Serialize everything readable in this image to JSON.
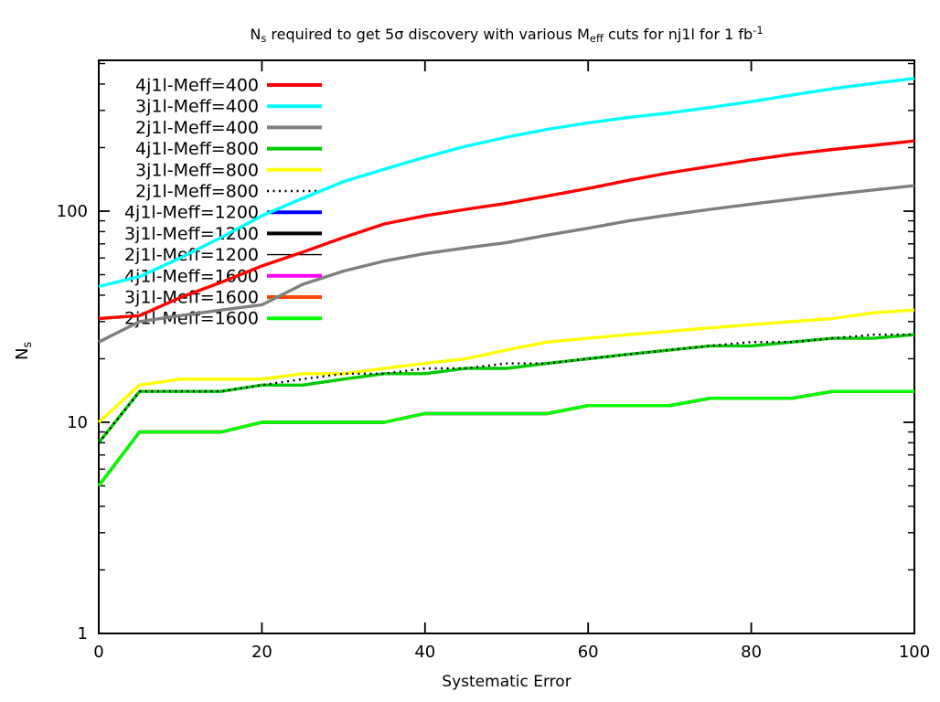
{
  "page": {
    "background": "#ffffff"
  },
  "title": {
    "p1": "N",
    "p1_sub": "s",
    "p2": " required to get 5σ discovery with various M",
    "p2_sub": "eff",
    "p3": " cuts for nj1l for 1 fb",
    "p3_sup": "-1"
  },
  "axes": {
    "x_label": "Systematic Error",
    "y_label_main": "N",
    "y_label_sub": "s"
  },
  "chart_data": {
    "type": "line",
    "title": "Ns required to get 5σ discovery with various Meff cuts for nj1l for 1 fb-1",
    "xlabel": "Systematic Error",
    "ylabel": "Ns",
    "x_scale": "linear",
    "y_scale": "log",
    "xlim": [
      0,
      100
    ],
    "ylim": [
      1,
      518
    ],
    "grid": false,
    "legend_position": "top-left-inside",
    "x_ticks": [
      0,
      20,
      40,
      60,
      80,
      100
    ],
    "x_tick_labels": [
      "0",
      "20",
      "40",
      "60",
      "80",
      "100"
    ],
    "y_ticks": [
      1,
      10,
      100
    ],
    "y_tick_labels": [
      "1",
      "10",
      "100"
    ],
    "y_minor_ticks": [
      2,
      3,
      4,
      5,
      6,
      7,
      8,
      9,
      20,
      30,
      40,
      50,
      60,
      70,
      80,
      90,
      200,
      300,
      400,
      500
    ],
    "x": [
      0,
      5,
      10,
      15,
      20,
      25,
      30,
      35,
      40,
      45,
      50,
      55,
      60,
      65,
      70,
      75,
      80,
      85,
      90,
      95,
      100
    ],
    "series": [
      {
        "name": "4j1l-Meff=400",
        "color": "#ff0000",
        "line_weight": "thick",
        "line_style": "solid",
        "values": [
          31,
          32,
          39,
          46,
          55,
          64,
          75,
          87,
          95,
          102,
          109,
          118,
          128,
          140,
          152,
          163,
          175,
          186,
          196,
          205,
          215
        ]
      },
      {
        "name": "3j1l-Meff=400",
        "color": "#00ffff",
        "line_weight": "thick",
        "line_style": "solid",
        "values": [
          44,
          49,
          60,
          75,
          95,
          115,
          138,
          158,
          180,
          203,
          224,
          244,
          262,
          278,
          292,
          310,
          330,
          355,
          380,
          403,
          425
        ]
      },
      {
        "name": "2j1l-Meff=400",
        "color": "#7f7f7f",
        "line_weight": "thick",
        "line_style": "solid",
        "values": [
          24,
          30,
          32,
          34,
          36,
          45,
          52,
          58,
          63,
          67,
          71,
          77,
          83,
          90,
          96,
          102,
          108,
          114,
          120,
          126,
          132
        ]
      },
      {
        "name": "4j1l-Meff=800",
        "color": "#00cc00",
        "line_weight": "thick",
        "line_style": "solid",
        "values": [
          8,
          14,
          14,
          14,
          15,
          15,
          16,
          17,
          17,
          18,
          18,
          19,
          20,
          21,
          22,
          23,
          23,
          24,
          25,
          25,
          26
        ]
      },
      {
        "name": "3j1l-Meff=800",
        "color": "#ffff00",
        "line_weight": "thick",
        "line_style": "solid",
        "values": [
          10,
          15,
          16,
          16,
          16,
          17,
          17,
          18,
          19,
          20,
          22,
          24,
          25,
          26,
          27,
          28,
          29,
          30,
          31,
          33,
          34
        ]
      },
      {
        "name": "2j1l-Meff=800",
        "color": "#000000",
        "line_weight": "thick",
        "line_style": "dotted",
        "values": [
          8,
          14,
          14,
          14,
          15,
          16,
          17,
          17,
          18,
          18,
          19,
          19,
          20,
          21,
          22,
          23,
          24,
          24,
          25,
          26,
          26
        ]
      },
      {
        "name": "4j1l-Meff=1200",
        "color": "#0000ff",
        "line_weight": "thick",
        "line_style": "solid",
        "fully_occluded_by": "2j1l-Meff=1600",
        "values": [
          5,
          9,
          9,
          9,
          10,
          10,
          10,
          10,
          11,
          11,
          11,
          11,
          12,
          12,
          12,
          13,
          13,
          13,
          14,
          14,
          14
        ]
      },
      {
        "name": "3j1l-Meff=1200",
        "color": "#000000",
        "line_weight": "thick",
        "line_style": "solid",
        "fully_occluded_by": "2j1l-Meff=1600",
        "values": [
          5,
          9,
          9,
          9,
          10,
          10,
          10,
          10,
          11,
          11,
          11,
          11,
          12,
          12,
          12,
          13,
          13,
          13,
          14,
          14,
          14
        ]
      },
      {
        "name": "2j1l-Meff=1200",
        "color": "#000000",
        "line_weight": "thin",
        "line_style": "solid",
        "fully_occluded_by": "2j1l-Meff=1600",
        "values": [
          5,
          9,
          9,
          9,
          10,
          10,
          10,
          10,
          11,
          11,
          11,
          11,
          12,
          12,
          12,
          13,
          13,
          13,
          14,
          14,
          14
        ]
      },
      {
        "name": "4j1l-Meff=1600",
        "color": "#ff00ff",
        "line_weight": "thick",
        "line_style": "solid",
        "fully_occluded_by": "2j1l-Meff=1600",
        "values": [
          5,
          9,
          9,
          9,
          10,
          10,
          10,
          10,
          11,
          11,
          11,
          11,
          12,
          12,
          12,
          13,
          13,
          13,
          14,
          14,
          14
        ]
      },
      {
        "name": "3j1l-Meff=1600",
        "color": "#ff4500",
        "line_weight": "thick",
        "line_style": "solid",
        "fully_occluded_by": "2j1l-Meff=1600",
        "values": [
          5,
          9,
          9,
          9,
          10,
          10,
          10,
          10,
          11,
          11,
          11,
          11,
          12,
          12,
          12,
          13,
          13,
          13,
          14,
          14,
          14
        ]
      },
      {
        "name": "2j1l-Meff=1600",
        "color": "#00ff00",
        "line_weight": "thick",
        "line_style": "solid",
        "values": [
          5,
          9,
          9,
          9,
          10,
          10,
          10,
          10,
          11,
          11,
          11,
          11,
          12,
          12,
          12,
          13,
          13,
          13,
          14,
          14,
          14
        ]
      }
    ]
  }
}
